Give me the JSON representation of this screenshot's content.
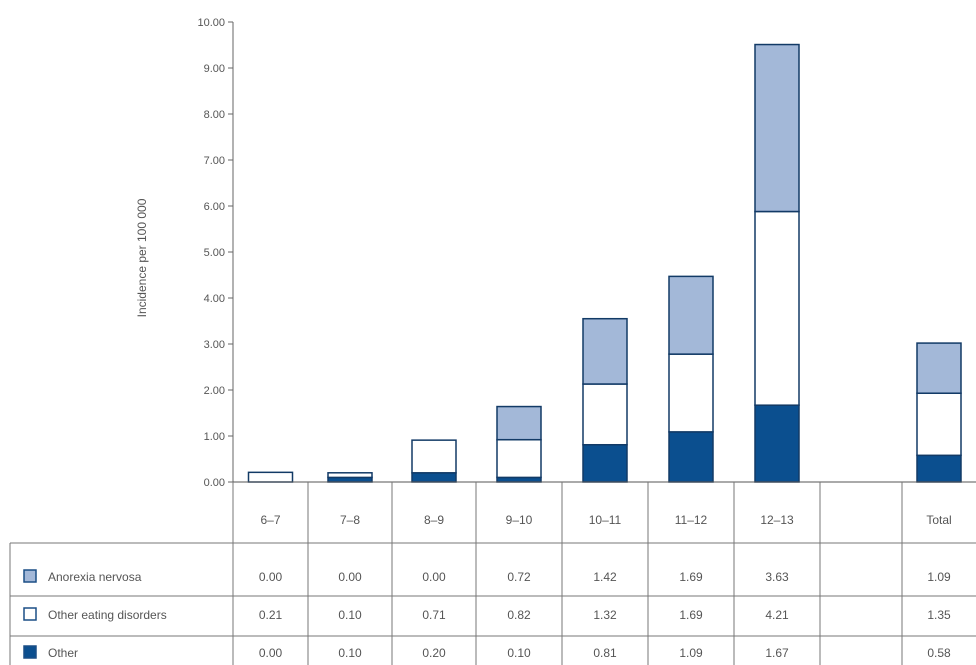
{
  "chart_data": {
    "type": "bar",
    "stacked": true,
    "ylabel": "Incidence per 100 000",
    "ylim": [
      0,
      10
    ],
    "y_ticks": [
      "0.00",
      "1.00",
      "2.00",
      "3.00",
      "4.00",
      "5.00",
      "6.00",
      "7.00",
      "8.00",
      "9.00",
      "10.00"
    ],
    "categories": [
      "6–7",
      "7–8",
      "8–9",
      "9–10",
      "10–11",
      "11–12",
      "12–13",
      "",
      "Total"
    ],
    "series": [
      {
        "name": "Other",
        "color": "#0b4f8f",
        "values": [
          0.0,
          0.1,
          0.2,
          0.1,
          0.81,
          1.09,
          1.67,
          null,
          0.58
        ]
      },
      {
        "name": "Other eating disorders",
        "color": "#ffffff",
        "values": [
          0.21,
          0.1,
          0.71,
          0.82,
          1.32,
          1.69,
          4.21,
          null,
          1.35
        ]
      },
      {
        "name": "Anorexia nervosa",
        "color": "#a3b8d8",
        "values": [
          0.0,
          0.0,
          0.0,
          0.72,
          1.42,
          1.69,
          3.63,
          null,
          1.09
        ]
      }
    ],
    "table": {
      "rows": [
        {
          "label": "Anorexia nervosa",
          "values": [
            "0.00",
            "0.00",
            "0.00",
            "0.72",
            "1.42",
            "1.69",
            "3.63",
            "",
            "1.09"
          ]
        },
        {
          "label": "Other eating disorders",
          "values": [
            "0.21",
            "0.10",
            "0.71",
            "0.82",
            "1.32",
            "1.69",
            "4.21",
            "",
            "1.35"
          ]
        },
        {
          "label": "Other",
          "values": [
            "0.00",
            "0.10",
            "0.20",
            "0.10",
            "0.81",
            "1.09",
            "1.67",
            "",
            "0.58"
          ]
        }
      ]
    }
  }
}
